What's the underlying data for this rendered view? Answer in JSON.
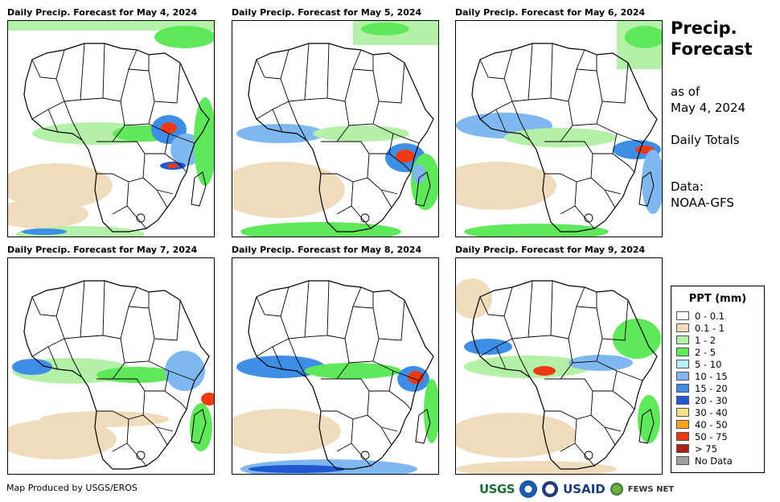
{
  "panels": [
    {
      "title": "Daily Precip. Forecast for May 4, 2024"
    },
    {
      "title": "Daily Precip. Forecast for May 5, 2024"
    },
    {
      "title": "Daily Precip. Forecast for May 6, 2024"
    },
    {
      "title": "Daily Precip. Forecast for May 7, 2024"
    },
    {
      "title": "Daily Precip. Forecast for May 8, 2024"
    },
    {
      "title": "Daily Precip. Forecast for May 9, 2024"
    }
  ],
  "side": {
    "title_line1": "Precip.",
    "title_line2": "Forecast",
    "as_of_line1": "as of",
    "as_of_line2": "May 4, 2024",
    "totals": "Daily Totals",
    "data_line1": "Data:",
    "data_line2": "NOAA-GFS"
  },
  "legend": {
    "title": "PPT (mm)",
    "items": [
      {
        "label": "0 - 0.1",
        "color": "#ffffff"
      },
      {
        "label": "0.1 - 1",
        "color": "#eedcbc"
      },
      {
        "label": "1 - 2",
        "color": "#b4f0a8"
      },
      {
        "label": "2 - 5",
        "color": "#5fe85a"
      },
      {
        "label": "5 - 10",
        "color": "#b8f2f6"
      },
      {
        "label": "10 - 15",
        "color": "#7fb8f0"
      },
      {
        "label": "15 - 20",
        "color": "#3e8ee8"
      },
      {
        "label": "20 - 30",
        "color": "#1f58d0"
      },
      {
        "label": "30 - 40",
        "color": "#f8e08a"
      },
      {
        "label": "40 - 50",
        "color": "#f5a41c"
      },
      {
        "label": "50 - 75",
        "color": "#ee3a12"
      },
      {
        "label": "> 75",
        "color": "#a8201a"
      },
      {
        "label": "No Data",
        "color": "#a0a0a0"
      }
    ]
  },
  "footer": {
    "credit": "Map Produced by USGS/EROS",
    "logo_usgs": "USGS",
    "logo_usaid": "USAID",
    "logo_fews": "FEWS NET"
  }
}
